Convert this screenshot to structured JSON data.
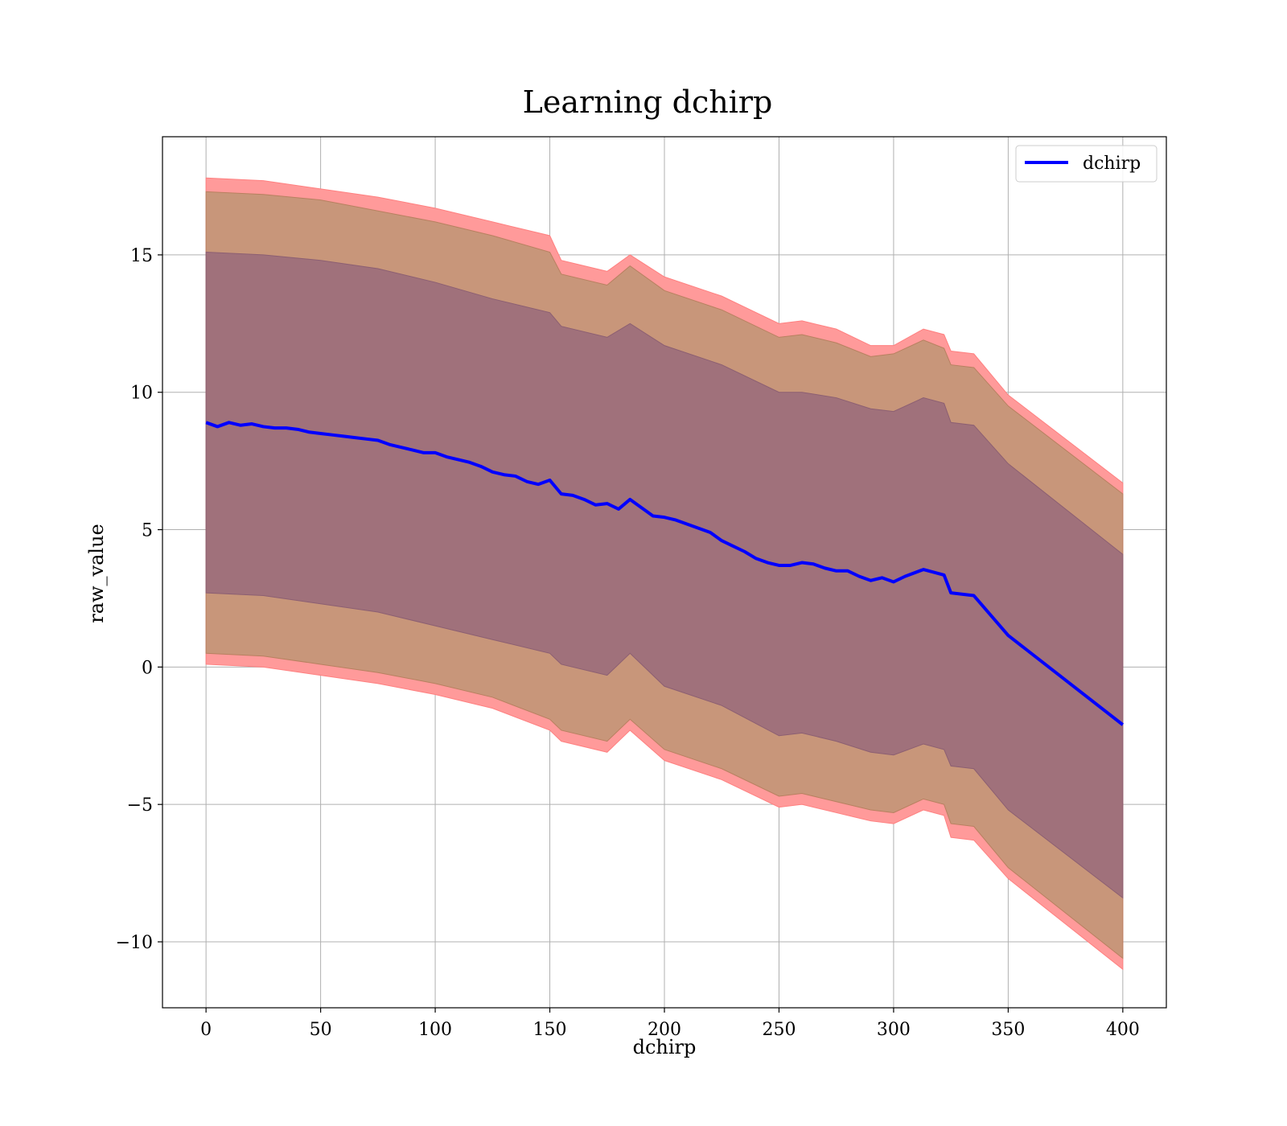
{
  "chart_data": {
    "type": "line",
    "title": "Learning dchirp",
    "xlabel": "dchirp",
    "ylabel": "raw_value",
    "xlim": [
      -19,
      419
    ],
    "ylim": [
      -12.4,
      19.3
    ],
    "xticks": [
      0,
      50,
      100,
      150,
      200,
      250,
      300,
      350,
      400
    ],
    "xtick_labels": [
      "0",
      "50",
      "100",
      "150",
      "200",
      "250",
      "300",
      "350",
      "400"
    ],
    "yticks": [
      -10,
      -5,
      0,
      5,
      10,
      15
    ],
    "ytick_labels": [
      "−10",
      "−5",
      "0",
      "5",
      "10",
      "15"
    ],
    "grid": true,
    "legend": {
      "position": "top-right",
      "entries": [
        "dchirp"
      ]
    },
    "colors": {
      "line": "#0000ff",
      "band_outer": "#ff9a9a",
      "band_middle": "#c8967a",
      "band_inner": "#a0717b"
    },
    "series": [
      {
        "name": "dchirp",
        "x": [
          0,
          5,
          10,
          15,
          20,
          25,
          30,
          35,
          40,
          45,
          50,
          55,
          60,
          65,
          70,
          75,
          80,
          85,
          90,
          95,
          100,
          105,
          110,
          115,
          120,
          125,
          130,
          135,
          140,
          145,
          150,
          155,
          160,
          165,
          170,
          175,
          180,
          185,
          190,
          195,
          200,
          205,
          210,
          215,
          220,
          225,
          230,
          235,
          240,
          245,
          250,
          255,
          260,
          265,
          270,
          275,
          280,
          285,
          290,
          295,
          300,
          305,
          313,
          322,
          325,
          335,
          350,
          400
        ],
        "y": [
          8.9,
          8.75,
          8.9,
          8.8,
          8.85,
          8.75,
          8.7,
          8.7,
          8.65,
          8.55,
          8.5,
          8.45,
          8.4,
          8.35,
          8.3,
          8.25,
          8.1,
          8.0,
          7.9,
          7.8,
          7.8,
          7.65,
          7.55,
          7.45,
          7.3,
          7.1,
          7.0,
          6.95,
          6.75,
          6.65,
          6.8,
          6.3,
          6.25,
          6.1,
          5.9,
          5.95,
          5.75,
          6.1,
          5.8,
          5.5,
          5.45,
          5.35,
          5.2,
          5.05,
          4.9,
          4.6,
          4.4,
          4.2,
          3.95,
          3.8,
          3.7,
          3.7,
          3.8,
          3.75,
          3.6,
          3.5,
          3.5,
          3.3,
          3.15,
          3.25,
          3.1,
          3.3,
          3.55,
          3.35,
          2.7,
          2.6,
          1.15,
          -2.1
        ]
      }
    ],
    "bands": [
      {
        "label": "outer",
        "x": [
          0,
          25,
          50,
          75,
          100,
          125,
          150,
          155,
          175,
          185,
          200,
          225,
          250,
          260,
          275,
          290,
          300,
          313,
          322,
          325,
          335,
          350,
          400
        ],
        "upper": [
          17.8,
          17.7,
          17.4,
          17.1,
          16.7,
          16.2,
          15.7,
          14.8,
          14.4,
          15.0,
          14.2,
          13.5,
          12.5,
          12.6,
          12.3,
          11.7,
          11.7,
          12.3,
          12.1,
          11.5,
          11.4,
          9.9,
          6.7
        ],
        "lower": [
          0.1,
          0.0,
          -0.3,
          -0.6,
          -1.0,
          -1.5,
          -2.3,
          -2.7,
          -3.1,
          -2.3,
          -3.4,
          -4.1,
          -5.1,
          -5.0,
          -5.3,
          -5.6,
          -5.7,
          -5.2,
          -5.4,
          -6.2,
          -6.3,
          -7.7,
          -11.0
        ]
      },
      {
        "label": "middle",
        "x": [
          0,
          25,
          50,
          75,
          100,
          125,
          150,
          155,
          175,
          185,
          200,
          225,
          250,
          260,
          275,
          290,
          300,
          313,
          322,
          325,
          335,
          350,
          400
        ],
        "upper": [
          17.3,
          17.2,
          17.0,
          16.6,
          16.2,
          15.7,
          15.1,
          14.3,
          13.9,
          14.6,
          13.7,
          13.0,
          12.0,
          12.1,
          11.8,
          11.3,
          11.4,
          11.9,
          11.6,
          11.0,
          10.9,
          9.5,
          6.3
        ],
        "lower": [
          0.5,
          0.4,
          0.1,
          -0.2,
          -0.6,
          -1.1,
          -1.9,
          -2.3,
          -2.7,
          -1.9,
          -3.0,
          -3.7,
          -4.7,
          -4.6,
          -4.9,
          -5.2,
          -5.3,
          -4.8,
          -5.0,
          -5.7,
          -5.8,
          -7.3,
          -10.6
        ]
      },
      {
        "label": "inner",
        "x": [
          0,
          25,
          50,
          75,
          100,
          125,
          150,
          155,
          175,
          185,
          200,
          225,
          250,
          260,
          275,
          290,
          300,
          313,
          322,
          325,
          335,
          350,
          400
        ],
        "upper": [
          15.1,
          15.0,
          14.8,
          14.5,
          14.0,
          13.4,
          12.9,
          12.4,
          12.0,
          12.5,
          11.7,
          11.0,
          10.0,
          10.0,
          9.8,
          9.4,
          9.3,
          9.8,
          9.6,
          8.9,
          8.8,
          7.4,
          4.1
        ],
        "lower": [
          2.7,
          2.6,
          2.3,
          2.0,
          1.5,
          1.0,
          0.5,
          0.1,
          -0.3,
          0.5,
          -0.7,
          -1.4,
          -2.5,
          -2.4,
          -2.7,
          -3.1,
          -3.2,
          -2.8,
          -3.0,
          -3.6,
          -3.7,
          -5.2,
          -8.4
        ]
      }
    ]
  }
}
